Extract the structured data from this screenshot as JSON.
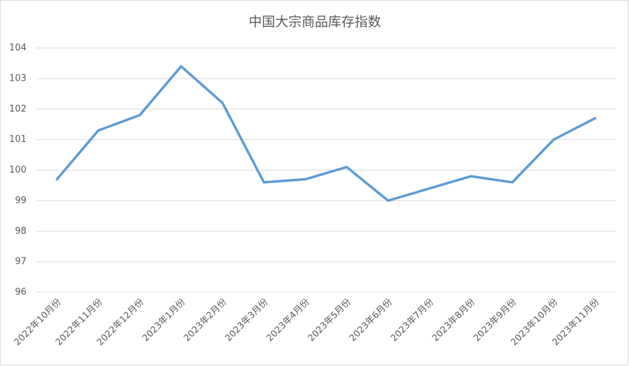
{
  "chart_data": {
    "type": "line",
    "title": "中国大宗商品库存指数",
    "categories": [
      "2022年10月份",
      "2022年11月份",
      "2022年12月份",
      "2023年1月份",
      "2023年2月份",
      "2023年3月份",
      "2023年4月份",
      "2023年5月份",
      "2023年6月份",
      "2023年7月份",
      "2023年8月份",
      "2023年9月份",
      "2023年10月份",
      "2023年11月份"
    ],
    "values": [
      99.7,
      101.3,
      101.8,
      103.4,
      102.2,
      99.6,
      99.7,
      100.1,
      99.0,
      99.4,
      99.8,
      99.6,
      101.0,
      101.7
    ],
    "color": "#5b9bd5",
    "ylim": [
      96,
      104
    ],
    "yticks": [
      96,
      97,
      98,
      99,
      100,
      101,
      102,
      103,
      104
    ],
    "grid": true
  }
}
